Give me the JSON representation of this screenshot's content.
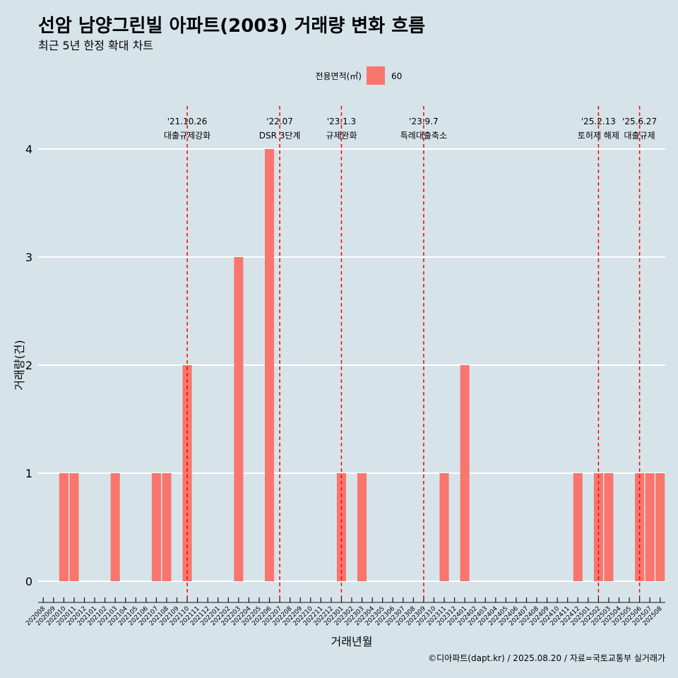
{
  "chart_data": {
    "type": "bar",
    "title": "선암 남양그린빌 아파트(2003) 거래량 변화 흐름",
    "subtitle": "최근 5년 한정 확대 차트",
    "xlabel": "거래년월",
    "ylabel": "거래량(건)",
    "ylim": [
      0,
      4
    ],
    "yticks": [
      "0",
      "1",
      "2",
      "3",
      "4"
    ],
    "legend": {
      "title": "전용면적(㎡)",
      "position": "top",
      "items": [
        {
          "label": "60",
          "color": "#f8766d"
        }
      ]
    },
    "categories": [
      "202008",
      "202009",
      "202010",
      "202011",
      "202012",
      "202101",
      "202102",
      "202103",
      "202104",
      "202105",
      "202106",
      "202107",
      "202108",
      "202109",
      "202110",
      "202111",
      "202112",
      "202201",
      "202202",
      "202203",
      "202204",
      "202205",
      "202206",
      "202207",
      "202208",
      "202209",
      "202210",
      "202211",
      "202212",
      "202301",
      "202302",
      "202303",
      "202304",
      "202305",
      "202306",
      "202307",
      "202308",
      "202309",
      "202310",
      "202311",
      "202312",
      "202401",
      "202402",
      "202403",
      "202404",
      "202405",
      "202406",
      "202407",
      "202408",
      "202409",
      "202410",
      "202411",
      "202412",
      "202501",
      "202502",
      "202503",
      "202504",
      "202505",
      "202506",
      "202507",
      "202508"
    ],
    "series": [
      {
        "name": "60",
        "color": "#f8766d",
        "values": [
          0,
          0,
          1,
          1,
          0,
          0,
          0,
          1,
          0,
          0,
          0,
          1,
          1,
          0,
          2,
          0,
          0,
          0,
          0,
          3,
          0,
          0,
          4,
          0,
          0,
          0,
          0,
          0,
          0,
          1,
          0,
          1,
          0,
          0,
          0,
          0,
          0,
          0,
          0,
          1,
          0,
          2,
          0,
          0,
          0,
          0,
          0,
          0,
          0,
          0,
          0,
          0,
          1,
          0,
          1,
          1,
          0,
          0,
          1,
          1,
          1
        ]
      }
    ],
    "events": [
      {
        "date": "'21.10.26",
        "label": "대출규제강화",
        "x": "202110"
      },
      {
        "date": "'22.07",
        "label": "DSR 3단계",
        "x": "202207"
      },
      {
        "date": "'23.1.3",
        "label": "규제완화",
        "x": "202301"
      },
      {
        "date": "'23.9.7",
        "label": "특례대출축소",
        "x": "202309"
      },
      {
        "date": "'25.2.13",
        "label": "토허제 해제",
        "x": "202502"
      },
      {
        "date": "'25.6.27",
        "label": "대출규제",
        "x": "202506"
      }
    ],
    "grid": true,
    "colors": {
      "background": "#d6e4ea",
      "bar": "#f8766d",
      "event_line": "#ff0000",
      "grid": "#ffffff"
    }
  },
  "caption": "©디아파트(dapt.kr) / 2025.08.20 / 자료=국토교통부 실거래가"
}
